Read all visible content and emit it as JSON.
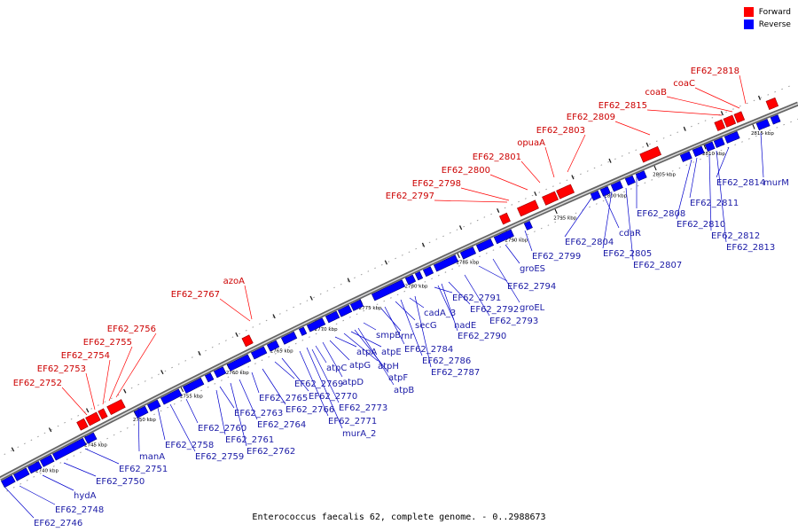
{
  "legend": {
    "forward_label": "Forward",
    "reverse_label": "Reverse",
    "forward_color": "#ff0000",
    "reverse_color": "#0000ff"
  },
  "caption": "Enterococcus faecalis 62, complete genome. - 0..2988673",
  "colors": {
    "backbone": "#6b6b6b",
    "forward_text": "#cc0000",
    "reverse_text": "#1a1aa6",
    "leader": "#ff0000",
    "leader_rev": "#0000cc"
  },
  "scale_ticks": [
    "2740 kbp",
    "2745 kbp",
    "2750 kbp",
    "2755 kbp",
    "2760 kbp",
    "2765 kbp",
    "2770 kbp",
    "2775 kbp",
    "2780 kbp",
    "2785 kbp",
    "2790 kbp",
    "2795 kbp",
    "2800 kbp",
    "2805 kbp",
    "2810 kbp",
    "2815 kbp"
  ],
  "forward_genes": [
    "EF62_2752",
    "EF62_2753",
    "EF62_2754",
    "EF62_2755",
    "EF62_2756",
    "EF62_2767",
    "azoA",
    "EF62_2797",
    "EF62_2798",
    "EF62_2800",
    "EF62_2801",
    "opuaA",
    "EF62_2803",
    "EF62_2809",
    "EF62_2815",
    "coaB",
    "coaC",
    "EF62_2818"
  ],
  "reverse_genes": [
    "EF62_2746",
    "EF62_2748",
    "hydA",
    "EF62_2750",
    "EF62_2751",
    "manA",
    "EF62_2758",
    "EF62_2759",
    "EF62_2760",
    "EF62_2761",
    "EF62_2762",
    "EF62_2763",
    "EF62_2764",
    "EF62_2765",
    "EF62_2766",
    "EF62_2769",
    "EF62_2770",
    "EF62_2771",
    "murA_2",
    "atpC",
    "atpD",
    "EF62_2773",
    "atpA",
    "atpG",
    "atpE",
    "atpH",
    "atpF",
    "atpB",
    "smpB",
    "rnr",
    "secG",
    "cadA_3",
    "EF62_2784",
    "EF62_2786",
    "EF62_2787",
    "nadE",
    "EF62_2790",
    "EF62_2791",
    "EF62_2792",
    "EF62_2793",
    "EF62_2794",
    "groES",
    "groEL",
    "EF62_2799",
    "EF62_2804",
    "EF62_2805",
    "cdaR",
    "EF62_2807",
    "EF62_2808",
    "EF62_2810",
    "EF62_2811",
    "EF62_2812",
    "EF62_2813",
    "EF62_2814",
    "murM"
  ]
}
